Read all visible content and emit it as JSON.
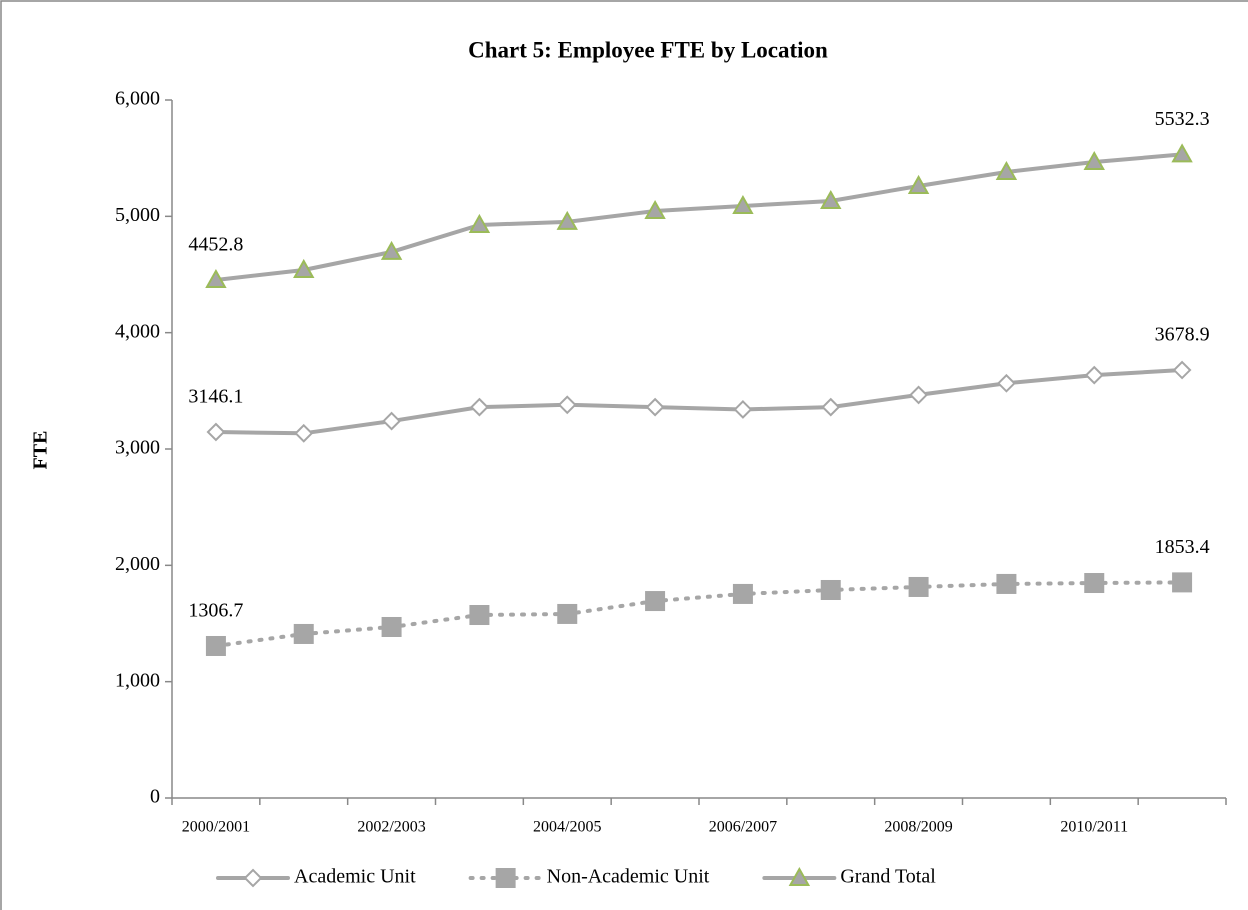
{
  "chart_data": {
    "type": "line",
    "title": "Chart 5: Employee FTE by Location",
    "y_label": "FTE",
    "categories": [
      "2000/2001",
      null,
      "2002/2003",
      null,
      "2004/2005",
      null,
      "2006/2007",
      null,
      "2008/2009",
      null,
      "2010/2011",
      null
    ],
    "ylim": [
      0,
      6000
    ],
    "yticks": [
      0,
      {
        "value": 1000,
        "label": "1,000"
      },
      {
        "value": 2000,
        "label": "2,000"
      },
      {
        "value": 3000,
        "label": "3,000"
      },
      {
        "value": 4000,
        "label": "4,000"
      },
      {
        "value": 5000,
        "label": "5,000"
      },
      {
        "value": 6000,
        "label": "6,000"
      }
    ],
    "legend": "bottom",
    "series": [
      {
        "name": "Academic Unit",
        "color": "#a6a6a6",
        "marker": "diamond",
        "marker_fill": "#ffffff",
        "marker_stroke": "#a6a6a6",
        "dash": "solid",
        "values": [
          3146.1,
          3135,
          3240,
          3360,
          3380,
          3360,
          3340,
          3360,
          3465,
          3565,
          3635,
          3678.9
        ],
        "value_labels": [
          "3146.1",
          null,
          null,
          null,
          null,
          null,
          null,
          null,
          null,
          null,
          null,
          "3678.9"
        ]
      },
      {
        "name": "Non-Academic Unit",
        "color": "#a6a6a6",
        "marker": "square",
        "marker_fill": "#a6a6a6",
        "marker_stroke": "#a6a6a6",
        "dash": "dotted",
        "values": [
          1306.7,
          1410,
          1470,
          1573,
          1582,
          1693,
          1754,
          1788,
          1814,
          1840,
          1848,
          1853.4
        ],
        "value_labels": [
          "1306.7",
          null,
          null,
          null,
          null,
          null,
          null,
          null,
          null,
          null,
          null,
          "1853.4"
        ]
      },
      {
        "name": "Grand Total",
        "color": "#a6a6a6",
        "marker": "triangle",
        "marker_fill": "#a6a6a6",
        "marker_stroke": "#9bbb59",
        "dash": "solid",
        "values": [
          4452.8,
          4539,
          4694,
          4926,
          4952,
          5046,
          5089,
          5132,
          5261,
          5381,
          5467,
          5532.3
        ],
        "value_labels": [
          "4452.8",
          null,
          null,
          null,
          null,
          null,
          null,
          null,
          null,
          null,
          null,
          "5532.3"
        ]
      }
    ]
  }
}
